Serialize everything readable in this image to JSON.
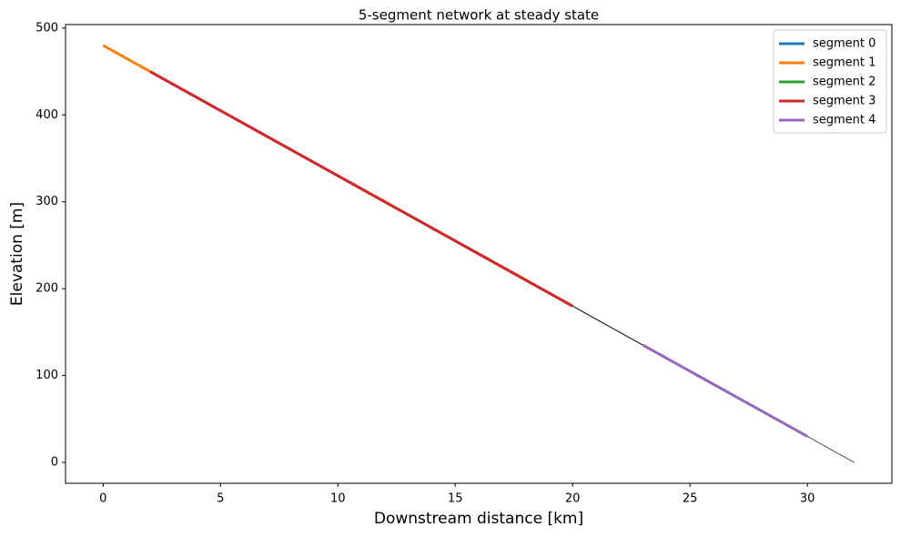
{
  "chart_data": {
    "type": "line",
    "title": "5-segment network at steady state",
    "x_label": "Downstream distance [km]",
    "y_label": "Elevation [m]",
    "xlim": [
      -1.6,
      33.6
    ],
    "ylim": [
      -24,
      504
    ],
    "xticks": [
      0,
      5,
      10,
      15,
      20,
      25,
      30
    ],
    "yticks": [
      0,
      100,
      200,
      300,
      400,
      500
    ],
    "grid": false,
    "legend": "upper right",
    "connectors": [
      {
        "color": "#222222",
        "x": [
          20,
          23
        ],
        "values": [
          180,
          135
        ]
      },
      {
        "color": "#666666",
        "x": [
          30,
          32
        ],
        "values": [
          30,
          0
        ]
      }
    ],
    "series": [
      {
        "name": "segment 0",
        "color": "#1f77b4",
        "x": [
          2,
          11
        ],
        "values": [
          450,
          315
        ]
      },
      {
        "name": "segment 1",
        "color": "#ff7f0e",
        "x": [
          0,
          2
        ],
        "values": [
          480,
          450
        ]
      },
      {
        "name": "segment 2",
        "color": "#2ca02c",
        "x": [
          11,
          20
        ],
        "values": [
          315,
          180
        ]
      },
      {
        "name": "segment 3",
        "color": "#d62728",
        "x": [
          2,
          20
        ],
        "values": [
          450,
          180
        ]
      },
      {
        "name": "segment 4",
        "color": "#9467bd",
        "x": [
          23,
          30
        ],
        "values": [
          135,
          30
        ]
      }
    ]
  }
}
